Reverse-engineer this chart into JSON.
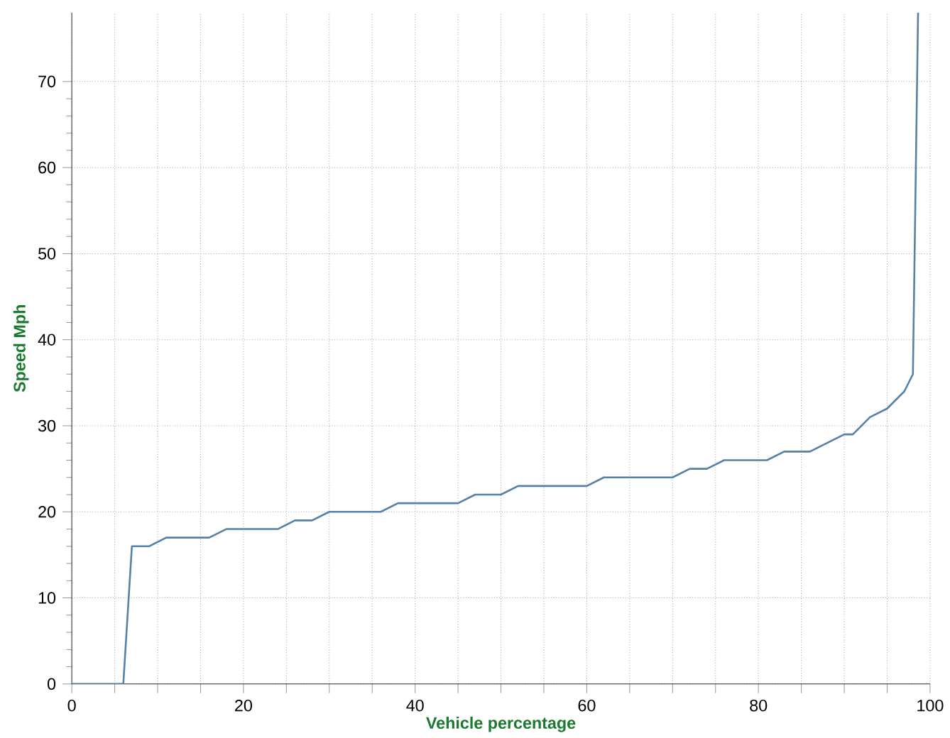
{
  "chart_data": {
    "type": "line",
    "xlabel": "Vehicle percentage",
    "ylabel": "Speed Mph",
    "x": [
      0,
      6,
      7,
      9,
      11,
      16,
      18,
      24,
      26,
      28,
      30,
      36,
      38,
      45,
      47,
      50,
      52,
      60,
      62,
      70,
      72,
      74,
      76,
      81,
      83,
      86,
      88,
      90,
      91,
      93,
      95,
      97,
      98,
      98.6
    ],
    "series": [
      {
        "color": "#5580a8",
        "values": [
          0,
          0,
          16,
          16,
          17,
          17,
          18,
          18,
          19,
          19,
          20,
          20,
          21,
          21,
          22,
          22,
          23,
          23,
          24,
          24,
          25,
          25,
          26,
          26,
          27,
          27,
          28,
          29,
          29,
          31,
          32,
          34,
          36,
          78
        ]
      }
    ],
    "xlim": [
      0,
      100
    ],
    "ylim": [
      0,
      78
    ],
    "xticks": [
      0,
      {
        "value": 5,
        "label": null
      },
      {
        "value": 10,
        "label": null
      },
      {
        "value": 15,
        "label": null
      },
      20,
      {
        "value": 25,
        "label": null
      },
      {
        "value": 30,
        "label": null
      },
      {
        "value": 35,
        "label": null
      },
      40,
      {
        "value": 45,
        "label": null
      },
      {
        "value": 50,
        "label": null
      },
      {
        "value": 55,
        "label": null
      },
      60,
      {
        "value": 65,
        "label": null
      },
      {
        "value": 70,
        "label": null
      },
      {
        "value": 75,
        "label": null
      },
      80,
      {
        "value": 85,
        "label": null
      },
      {
        "value": 90,
        "label": null
      },
      {
        "value": 95,
        "label": null
      },
      100
    ],
    "yticks": [
      0,
      10,
      20,
      30,
      40,
      50,
      60,
      70
    ],
    "grid": true,
    "marker": "none",
    "line_style": "solid"
  }
}
